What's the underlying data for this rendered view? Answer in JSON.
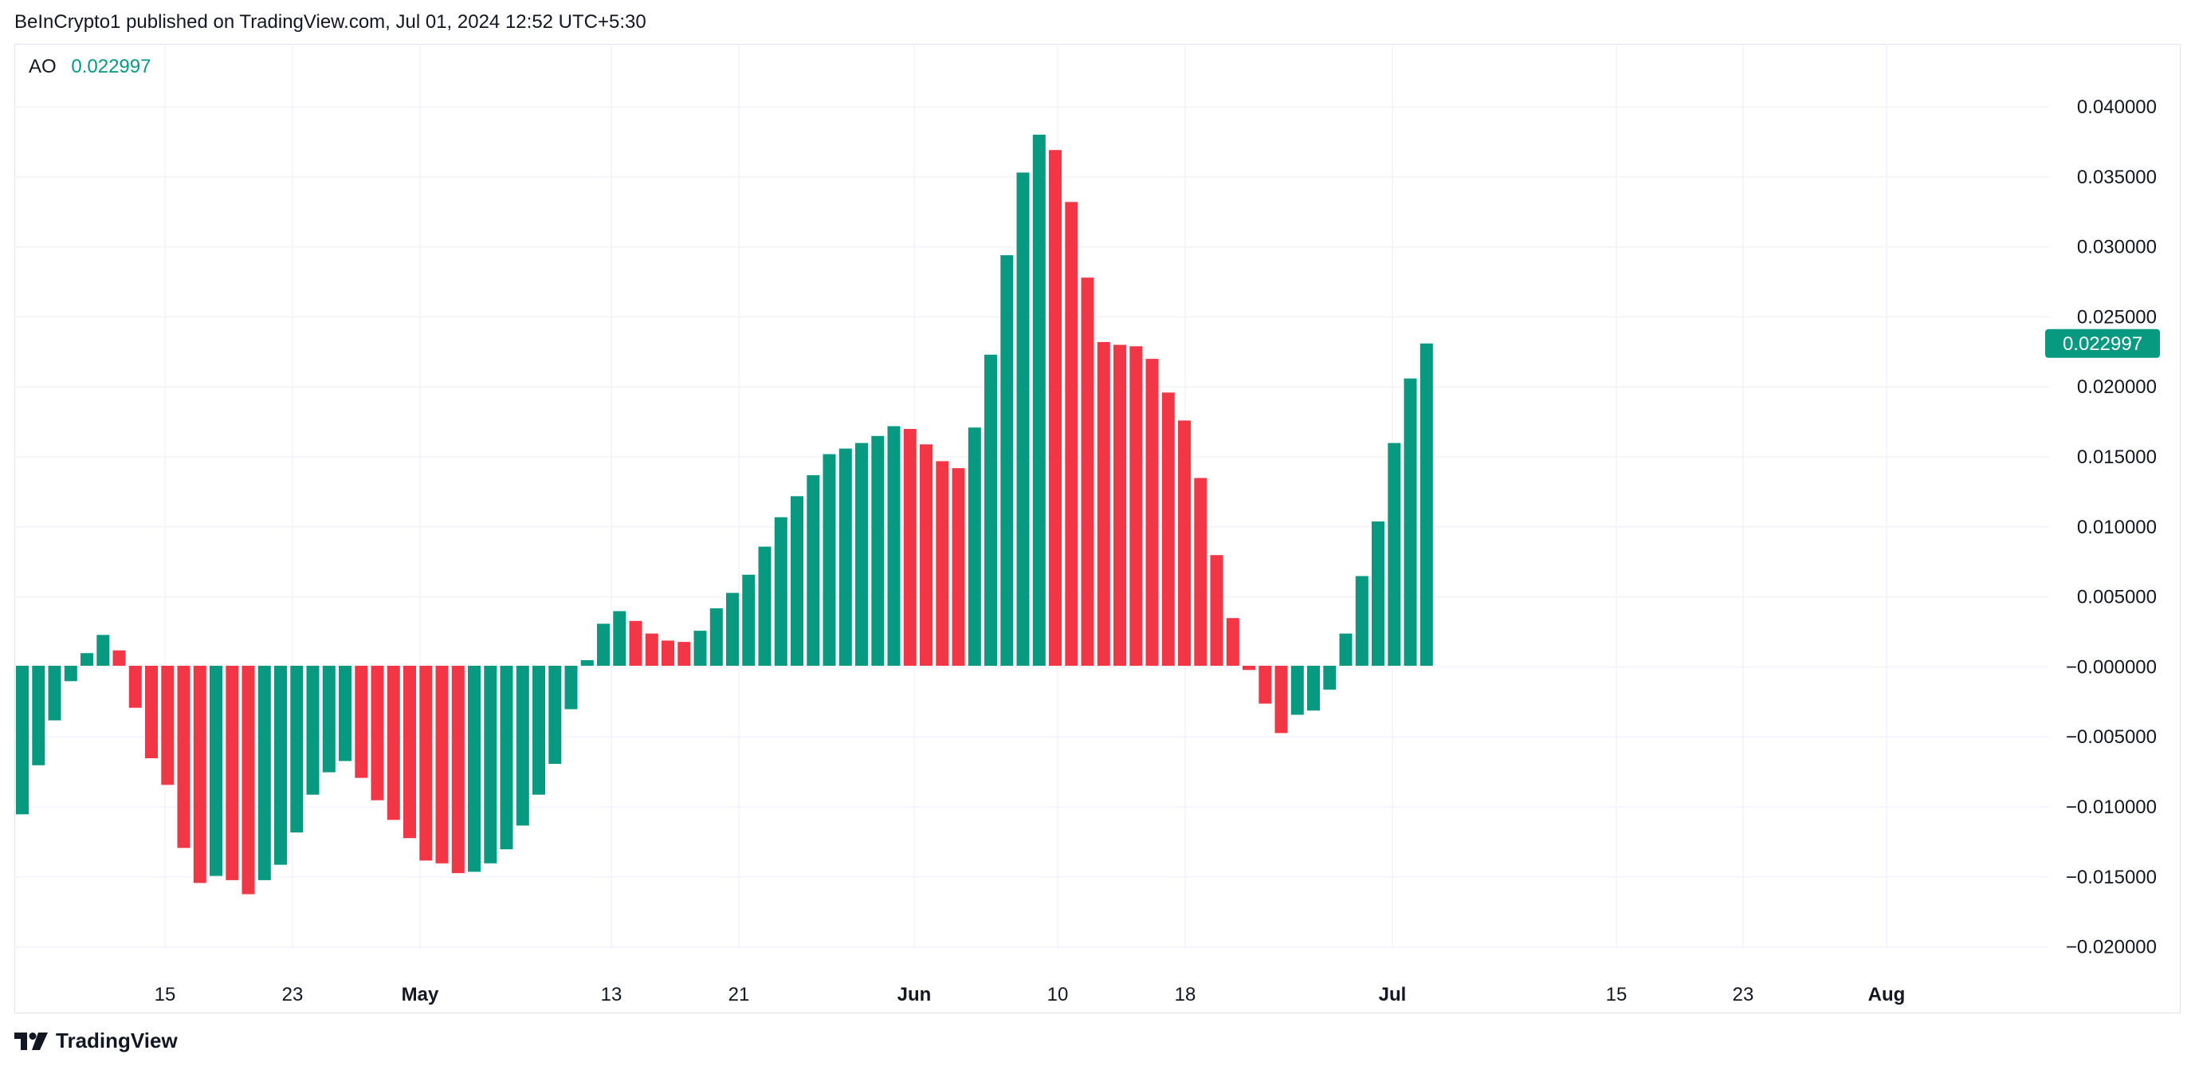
{
  "header": {
    "publish_line": "BeInCrypto1 published on TradingView.com, Jul 01, 2024 12:52 UTC+5:30"
  },
  "legend": {
    "indicator": "AO",
    "value": "0.022997",
    "value_color": "#089981"
  },
  "price_label": {
    "text": "0.022997",
    "color": "#089981"
  },
  "footer": {
    "brand": "TradingView"
  },
  "icons": [
    "tradingview-logo-icon"
  ],
  "colors": {
    "up": "#089981",
    "down": "#F23645",
    "grid": "#f0f3fa",
    "text": "#131722"
  },
  "chart_data": {
    "type": "bar",
    "title": "AO",
    "y_ticks": [
      "0.040000",
      "0.035000",
      "0.030000",
      "0.025000",
      "0.020000",
      "0.015000",
      "0.010000",
      "0.005000",
      "−0.000000",
      "−0.005000",
      "−0.010000",
      "−0.015000",
      "−0.020000"
    ],
    "x_ticks": [
      "15",
      "23",
      "May",
      "13",
      "21",
      "Jun",
      "10",
      "18",
      "Jul",
      "15",
      "23",
      "Aug"
    ],
    "x_ticks_bold": [
      "May",
      "Jun",
      "Jul",
      "Aug"
    ],
    "ylim": [
      -0.02,
      0.04
    ],
    "grid": true,
    "last_value": 0.022997,
    "series": [
      {
        "values": [
          -0.0106,
          -0.0071,
          -0.0039,
          -0.0011,
          0.0009,
          0.0022,
          0.0011,
          -0.003,
          -0.0066,
          -0.0085,
          -0.013,
          -0.0155,
          -0.015,
          -0.0153,
          -0.0163,
          -0.0153,
          -0.0142,
          -0.0119,
          -0.0092,
          -0.0076,
          -0.0068,
          -0.008,
          -0.0096,
          -0.011,
          -0.0123,
          -0.0139,
          -0.0141,
          -0.0148,
          -0.0147,
          -0.0141,
          -0.0131,
          -0.0114,
          -0.0092,
          -0.007,
          -0.0031,
          0.0004,
          0.003,
          0.0039,
          0.0032,
          0.0023,
          0.0018,
          0.0017,
          0.0025,
          0.0041,
          0.0052,
          0.0065,
          0.0085,
          0.0106,
          0.0121,
          0.0136,
          0.0151,
          0.0155,
          0.0159,
          0.0164,
          0.0171,
          0.0169,
          0.0158,
          0.0146,
          0.0141,
          0.017,
          0.0222,
          0.0293,
          0.0352,
          0.0379,
          0.0368,
          0.0331,
          0.0277,
          0.0231,
          0.0229,
          0.0228,
          0.0219,
          0.0195,
          0.0175,
          0.0134,
          0.0079,
          0.0034,
          -0.0003,
          -0.0027,
          -0.0048,
          -0.0035,
          -0.0032,
          -0.0017,
          0.0023,
          0.0064,
          0.0103,
          0.0159,
          0.0205,
          0.022997
        ],
        "colors": [
          "up",
          "up",
          "up",
          "up",
          "up",
          "up",
          "down",
          "down",
          "down",
          "down",
          "down",
          "down",
          "up",
          "down",
          "down",
          "up",
          "up",
          "up",
          "up",
          "up",
          "up",
          "down",
          "down",
          "down",
          "down",
          "down",
          "down",
          "down",
          "up",
          "up",
          "up",
          "up",
          "up",
          "up",
          "up",
          "up",
          "up",
          "up",
          "down",
          "down",
          "down",
          "down",
          "up",
          "up",
          "up",
          "up",
          "up",
          "up",
          "up",
          "up",
          "up",
          "up",
          "up",
          "up",
          "up",
          "down",
          "down",
          "down",
          "down",
          "up",
          "up",
          "up",
          "up",
          "up",
          "down",
          "down",
          "down",
          "down",
          "down",
          "down",
          "down",
          "down",
          "down",
          "down",
          "down",
          "down",
          "down",
          "down",
          "down",
          "up",
          "up",
          "up",
          "up",
          "up",
          "up",
          "up",
          "up",
          "up"
        ]
      }
    ]
  }
}
